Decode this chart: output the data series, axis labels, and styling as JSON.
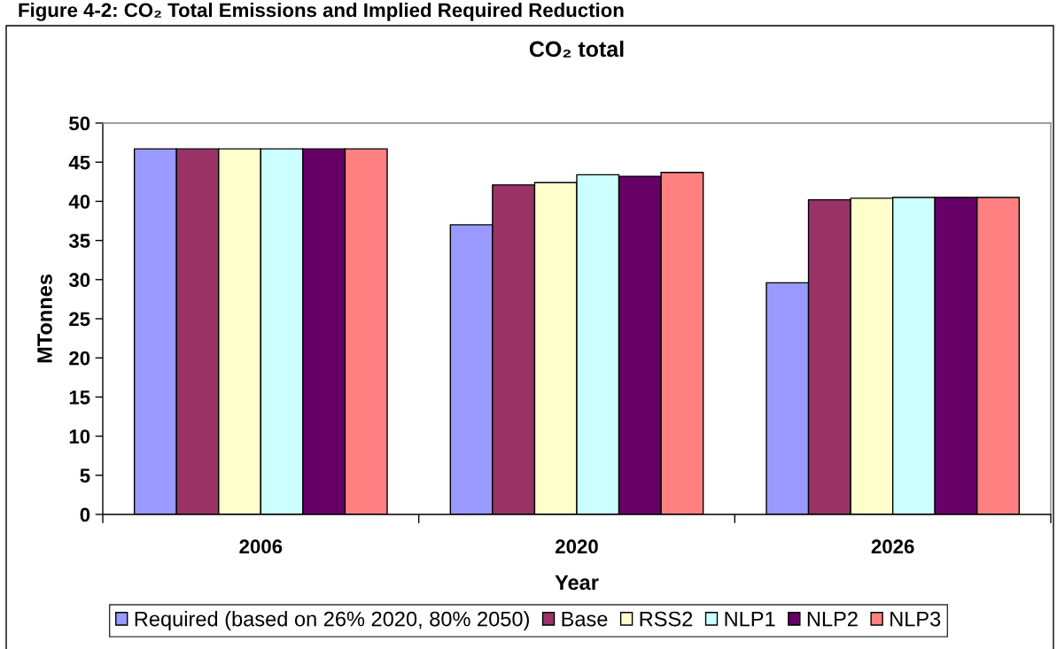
{
  "chart_data": {
    "type": "bar",
    "title": "CO₂ total",
    "xlabel": "Year",
    "ylabel": "MTonnes",
    "annotations": [
      "Figure 4-2: CO₂ Total Emissions and Implied Required Reduction"
    ],
    "categories": [
      "2006",
      "2020",
      "2026"
    ],
    "series": [
      {
        "name": "Required (based on 26% 2020, 80% 2050)",
        "color": "#9999ff",
        "values": [
          46.7,
          37.0,
          29.6
        ]
      },
      {
        "name": "Base",
        "color": "#993366",
        "values": [
          46.7,
          42.1,
          40.2
        ]
      },
      {
        "name": "RSS2",
        "color": "#ffffcc",
        "values": [
          46.7,
          42.4,
          40.4
        ]
      },
      {
        "name": "NLP1",
        "color": "#ccffff",
        "values": [
          46.7,
          43.4,
          40.5
        ]
      },
      {
        "name": "NLP2",
        "color": "#660066",
        "values": [
          46.7,
          43.2,
          40.5
        ]
      },
      {
        "name": "NLP3",
        "color": "#ff8080",
        "values": [
          46.7,
          43.7,
          40.5
        ]
      }
    ],
    "ylim": [
      0,
      50
    ],
    "yticks": [
      0,
      5,
      10,
      15,
      20,
      25,
      30,
      35,
      40,
      45,
      50
    ],
    "legend": "bottom"
  }
}
